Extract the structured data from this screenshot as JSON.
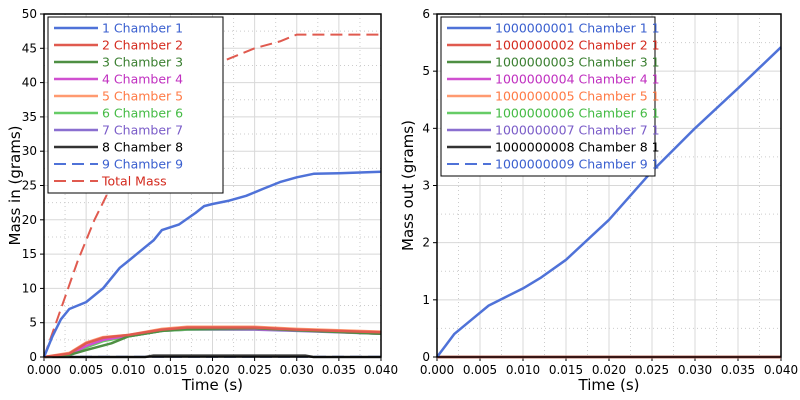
{
  "chart_data": [
    {
      "type": "line",
      "xlabel": "Time (s)",
      "ylabel": "Mass in (grams)",
      "xlim": [
        0,
        0.04
      ],
      "ylim": [
        0,
        50
      ],
      "xticks": [
        "0.000",
        "0.005",
        "0.010",
        "0.015",
        "0.020",
        "0.025",
        "0.030",
        "0.035",
        "0.040"
      ],
      "yticks": [
        "0",
        "5",
        "10",
        "15",
        "20",
        "25",
        "30",
        "35",
        "40",
        "45",
        "50"
      ],
      "grid": true,
      "legend_position": "top-left",
      "series": [
        {
          "name": "1 Chamber 1",
          "color": "#4f72d8",
          "text_color": "#3a5fcf",
          "dash": false,
          "x": [
            0,
            0.001,
            0.002,
            0.003,
            0.005,
            0.007,
            0.009,
            0.01,
            0.012,
            0.013,
            0.014,
            0.016,
            0.018,
            0.019,
            0.02,
            0.022,
            0.024,
            0.026,
            0.028,
            0.03,
            0.032,
            0.035,
            0.04
          ],
          "y": [
            0,
            3,
            5.5,
            7,
            8,
            10,
            13,
            14,
            16,
            17,
            18.5,
            19.3,
            21,
            22,
            22.3,
            22.8,
            23.5,
            24.5,
            25.5,
            26.2,
            26.7,
            26.8,
            27
          ]
        },
        {
          "name": "2 Chamber 2",
          "color": "#e05a4f",
          "text_color": "#d42a1e",
          "dash": false,
          "x": [
            0,
            0.003,
            0.005,
            0.007,
            0.01,
            0.014,
            0.017,
            0.025,
            0.03,
            0.04
          ],
          "y": [
            0,
            0.5,
            2,
            2.8,
            3.2,
            4.0,
            4.3,
            4.3,
            4.0,
            3.6
          ]
        },
        {
          "name": "3 Chamber 3",
          "color": "#4e8f43",
          "text_color": "#3a7f30",
          "dash": false,
          "x": [
            0,
            0.003,
            0.005,
            0.008,
            0.01,
            0.014,
            0.017,
            0.025,
            0.03,
            0.04
          ],
          "y": [
            0,
            0.3,
            1,
            2,
            3,
            3.8,
            4.1,
            4.2,
            3.9,
            3.4
          ]
        },
        {
          "name": "4 Chamber 4",
          "color": "#d050d0",
          "text_color": "#c030c0",
          "dash": false,
          "x": [
            0,
            0.003,
            0.005,
            0.007,
            0.01,
            0.014,
            0.017,
            0.025,
            0.03,
            0.04
          ],
          "y": [
            0,
            0.3,
            1.6,
            2.5,
            3.1,
            3.9,
            4.1,
            4.1,
            3.9,
            3.4
          ]
        },
        {
          "name": "5 Chamber 5",
          "color": "#ff9a70",
          "text_color": "#ff7a45",
          "dash": false,
          "x": [
            0,
            0.003,
            0.005,
            0.007,
            0.01,
            0.014,
            0.017,
            0.025,
            0.03,
            0.04
          ],
          "y": [
            0,
            0.6,
            2.1,
            2.9,
            3.2,
            4.1,
            4.4,
            4.4,
            4.1,
            3.7
          ]
        },
        {
          "name": "6 Chamber 6",
          "color": "#66cc66",
          "text_color": "#44bb44",
          "dash": false,
          "x": [
            0,
            0.003,
            0.005,
            0.007,
            0.01,
            0.014,
            0.017,
            0.025,
            0.03,
            0.04
          ],
          "y": [
            0,
            0.3,
            1.4,
            2.3,
            3.0,
            3.8,
            4.0,
            4.1,
            3.9,
            3.4
          ]
        },
        {
          "name": "7 Chamber 7",
          "color": "#8a6fd0",
          "text_color": "#7a5cc8",
          "dash": false,
          "x": [
            0,
            0.003,
            0.005,
            0.007,
            0.01,
            0.014,
            0.017,
            0.025,
            0.03,
            0.04
          ],
          "y": [
            0,
            0.3,
            1.5,
            2.4,
            3.0,
            3.8,
            4.0,
            4.0,
            3.8,
            3.4
          ]
        },
        {
          "name": "8 Chamber 8",
          "color": "#333333",
          "text_color": "#000000",
          "dash": false,
          "x": [
            0,
            0.012,
            0.013,
            0.031,
            0.032,
            0.04
          ],
          "y": [
            0,
            0,
            0.2,
            0.2,
            0,
            0
          ]
        },
        {
          "name": "9 Chamber 9",
          "color": "#4f72d8",
          "text_color": "#3a5fcf",
          "dash": true,
          "x": [
            0,
            0.04
          ],
          "y": [
            0.05,
            0.05
          ]
        },
        {
          "name": "Total Mass",
          "color": "#e05a4f",
          "text_color": "#d42a1e",
          "dash": true,
          "x": [
            0,
            0.002,
            0.004,
            0.006,
            0.008,
            0.01,
            0.012,
            0.014,
            0.016,
            0.018,
            0.02,
            0.022,
            0.025,
            0.028,
            0.03,
            0.04
          ],
          "y": [
            0,
            7,
            14,
            20,
            25,
            29,
            33,
            36.5,
            39,
            41.5,
            42.5,
            43.5,
            45,
            46,
            47,
            47
          ]
        }
      ]
    },
    {
      "type": "line",
      "xlabel": "Time (s)",
      "ylabel": "Mass out (grams)",
      "xlim": [
        0,
        0.04
      ],
      "ylim": [
        0,
        6
      ],
      "xticks": [
        "0.000",
        "0.005",
        "0.010",
        "0.015",
        "0.020",
        "0.025",
        "0.030",
        "0.035",
        "0.040"
      ],
      "yticks": [
        "0",
        "1",
        "2",
        "3",
        "4",
        "5",
        "6"
      ],
      "grid": true,
      "legend_position": "top-left",
      "series": [
        {
          "name": "1000000001 Chamber 1 1",
          "color": "#4f72d8",
          "text_color": "#3a5fcf",
          "dash": false,
          "x": [
            0,
            0.001,
            0.002,
            0.004,
            0.006,
            0.008,
            0.01,
            0.012,
            0.015,
            0.02,
            0.025,
            0.03,
            0.035,
            0.04
          ],
          "y": [
            0,
            0.2,
            0.4,
            0.65,
            0.9,
            1.05,
            1.2,
            1.38,
            1.7,
            2.4,
            3.25,
            4.0,
            4.7,
            5.42
          ]
        },
        {
          "name": "1000000002 Chamber 2 1",
          "color": "#e05a4f",
          "text_color": "#d42a1e",
          "dash": false,
          "x": [
            0,
            0.04
          ],
          "y": [
            0,
            0
          ]
        },
        {
          "name": "1000000003 Chamber 3 1",
          "color": "#4e8f43",
          "text_color": "#3a7f30",
          "dash": false,
          "x": [
            0,
            0.04
          ],
          "y": [
            0,
            0
          ]
        },
        {
          "name": "1000000004 Chamber 4 1",
          "color": "#d050d0",
          "text_color": "#c030c0",
          "dash": false,
          "x": [
            0,
            0.04
          ],
          "y": [
            0,
            0
          ]
        },
        {
          "name": "1000000005 Chamber 5 1",
          "color": "#ff9a70",
          "text_color": "#ff7a45",
          "dash": false,
          "x": [
            0,
            0.04
          ],
          "y": [
            0,
            0
          ]
        },
        {
          "name": "1000000006 Chamber 6 1",
          "color": "#66cc66",
          "text_color": "#44bb44",
          "dash": false,
          "x": [
            0,
            0.04
          ],
          "y": [
            0,
            0
          ]
        },
        {
          "name": "1000000007 Chamber 7 1",
          "color": "#8a6fd0",
          "text_color": "#7a5cc8",
          "dash": false,
          "x": [
            0,
            0.04
          ],
          "y": [
            0,
            0
          ]
        },
        {
          "name": "1000000008 Chamber 8 1",
          "color": "#333333",
          "text_color": "#000000",
          "dash": false,
          "x": [
            0,
            0.04
          ],
          "y": [
            0,
            0
          ]
        },
        {
          "name": "1000000009 Chamber 9 1",
          "color": "#4f72d8",
          "text_color": "#3a5fcf",
          "dash": true,
          "x": [
            0,
            0.04
          ],
          "y": [
            0,
            0
          ]
        }
      ]
    }
  ]
}
